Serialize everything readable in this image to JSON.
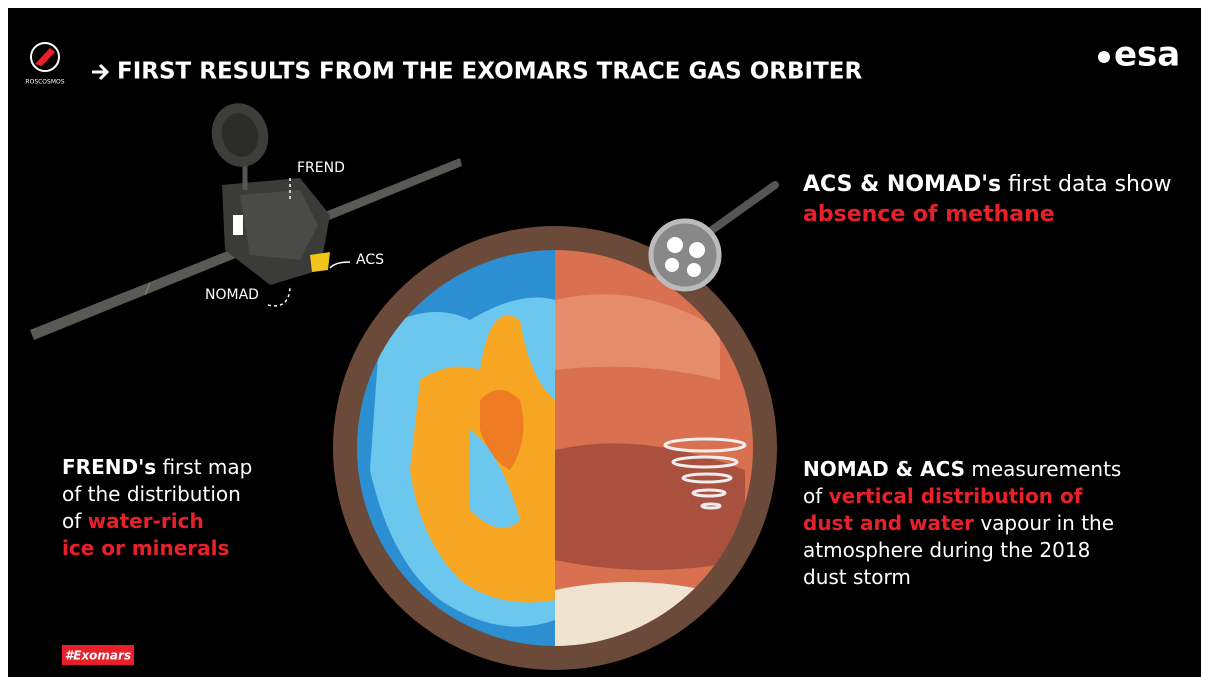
{
  "header": {
    "agency_left": "ROSCOSMOS",
    "title": "FIRST RESULTS FROM THE EXOMARS TRACE GAS ORBITER",
    "agency_right": "esa"
  },
  "instrument_labels": [
    "FREND",
    "ACS",
    "NOMAD"
  ],
  "panels": [
    {
      "lines": [
        [
          {
            "text": "ACS & NOMAD's",
            "color": "#ffffff",
            "bold": true
          },
          {
            "text": " first data show",
            "color": "#ffffff",
            "bold": false
          }
        ],
        [
          {
            "text": "absence of methane",
            "color": "#e8202a",
            "bold": true
          }
        ]
      ]
    },
    {
      "lines": [
        [
          {
            "text": "FREND's",
            "color": "#ffffff",
            "bold": true
          },
          {
            "text": " first map",
            "color": "#ffffff",
            "bold": false
          }
        ],
        [
          {
            "text": "of the distribution",
            "color": "#ffffff",
            "bold": false
          }
        ],
        [
          {
            "text": "of ",
            "color": "#ffffff",
            "bold": false
          },
          {
            "text": "water-rich",
            "color": "#e8202a",
            "bold": true
          }
        ],
        [
          {
            "text": "ice or minerals",
            "color": "#e8202a",
            "bold": true
          }
        ]
      ]
    },
    {
      "lines": [
        [
          {
            "text": "NOMAD & ACS",
            "color": "#ffffff",
            "bold": true
          },
          {
            "text": " measurements",
            "color": "#ffffff",
            "bold": false
          }
        ],
        [
          {
            "text": "of ",
            "color": "#ffffff",
            "bold": false
          },
          {
            "text": "vertical distribution of",
            "color": "#e8202a",
            "bold": true
          }
        ],
        [
          {
            "text": "dust and water",
            "color": "#e8202a",
            "bold": true
          },
          {
            "text": " vapour in the",
            "color": "#ffffff",
            "bold": false
          }
        ],
        [
          {
            "text": "atmosphere during the 2018",
            "color": "#ffffff",
            "bold": false
          }
        ],
        [
          {
            "text": "dust storm",
            "color": "#ffffff",
            "bold": false
          }
        ]
      ]
    }
  ],
  "hashtag": "#Exomars"
}
